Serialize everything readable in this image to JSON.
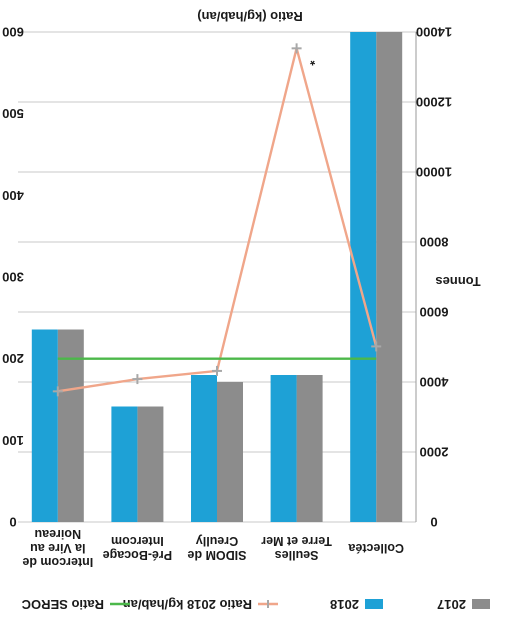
{
  "chart_data": {
    "type": "bar",
    "orientation": "rotated",
    "categories": [
      [
        "Collectéa"
      ],
      [
        "Seulles",
        "Terre et Mer"
      ],
      [
        "SIDOM de",
        "Creully"
      ],
      [
        "Pré-Bocage",
        "Intercom"
      ],
      [
        "Intercom de",
        "la Vire au",
        "Noireau"
      ]
    ],
    "series": [
      {
        "name": "2017",
        "type": "bar",
        "color": "#8c8c8c",
        "values": [
          14000,
          4200,
          4000,
          3300,
          5500
        ]
      },
      {
        "name": "2018",
        "type": "bar",
        "color": "#1ea1d6",
        "values": [
          14000,
          4200,
          4200,
          3300,
          5500
        ]
      },
      {
        "name": "Ratio 2018 kg/hab/an",
        "type": "line",
        "axis": "secondary",
        "color": "#f0a68a",
        "marker_color": "#a8a8a8",
        "values": [
          215,
          580,
          185,
          175,
          160
        ]
      },
      {
        "name": "Ratio SEROC",
        "type": "line",
        "axis": "secondary",
        "color": "#4cb84a",
        "values": [
          200,
          200,
          200,
          200,
          200
        ]
      }
    ],
    "primary_axis": {
      "label": "Tonnes",
      "ylim": [
        0,
        14000
      ],
      "ticks": [
        "0",
        "2000",
        "4000",
        "6000",
        "8000",
        "10000",
        "12000",
        "14000"
      ]
    },
    "secondary_axis": {
      "label": "Ratio (kg/hab/an)",
      "ylim": [
        0,
        600
      ],
      "ticks": [
        "0",
        "100",
        "200",
        "300",
        "400",
        "500",
        "600"
      ]
    },
    "annotations": [
      {
        "text": "*",
        "category_index": 1
      }
    ],
    "grid": true,
    "legend_position": "bottom"
  }
}
